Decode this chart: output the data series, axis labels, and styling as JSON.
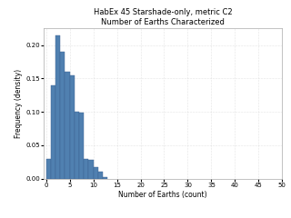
{
  "title_line1": "HabEx 45 Starshade-only, metric C2",
  "title_line2": "Number of Earths Characterized",
  "xlabel": "Number of Earths (count)",
  "ylabel": "Frequency (density)",
  "bar_color": "#5080b0",
  "bar_edge_color": "#3a6090",
  "xlim": [
    -0.5,
    50
  ],
  "ylim": [
    0,
    0.225
  ],
  "xticks": [
    0,
    5,
    10,
    15,
    20,
    25,
    30,
    35,
    40,
    45,
    50
  ],
  "yticks": [
    0,
    0.05,
    0.1,
    0.15,
    0.2
  ],
  "bin_heights": [
    0.03,
    0.14,
    0.215,
    0.19,
    0.16,
    0.155,
    0.1,
    0.099,
    0.03,
    0.028,
    0.018,
    0.01,
    0.003
  ],
  "bin_edges": [
    0,
    1,
    2,
    3,
    4,
    5,
    6,
    7,
    8,
    9,
    10,
    11,
    12,
    13
  ],
  "background_color": "#ffffff",
  "title_fontsize": 6,
  "label_fontsize": 5.5,
  "tick_fontsize": 5
}
